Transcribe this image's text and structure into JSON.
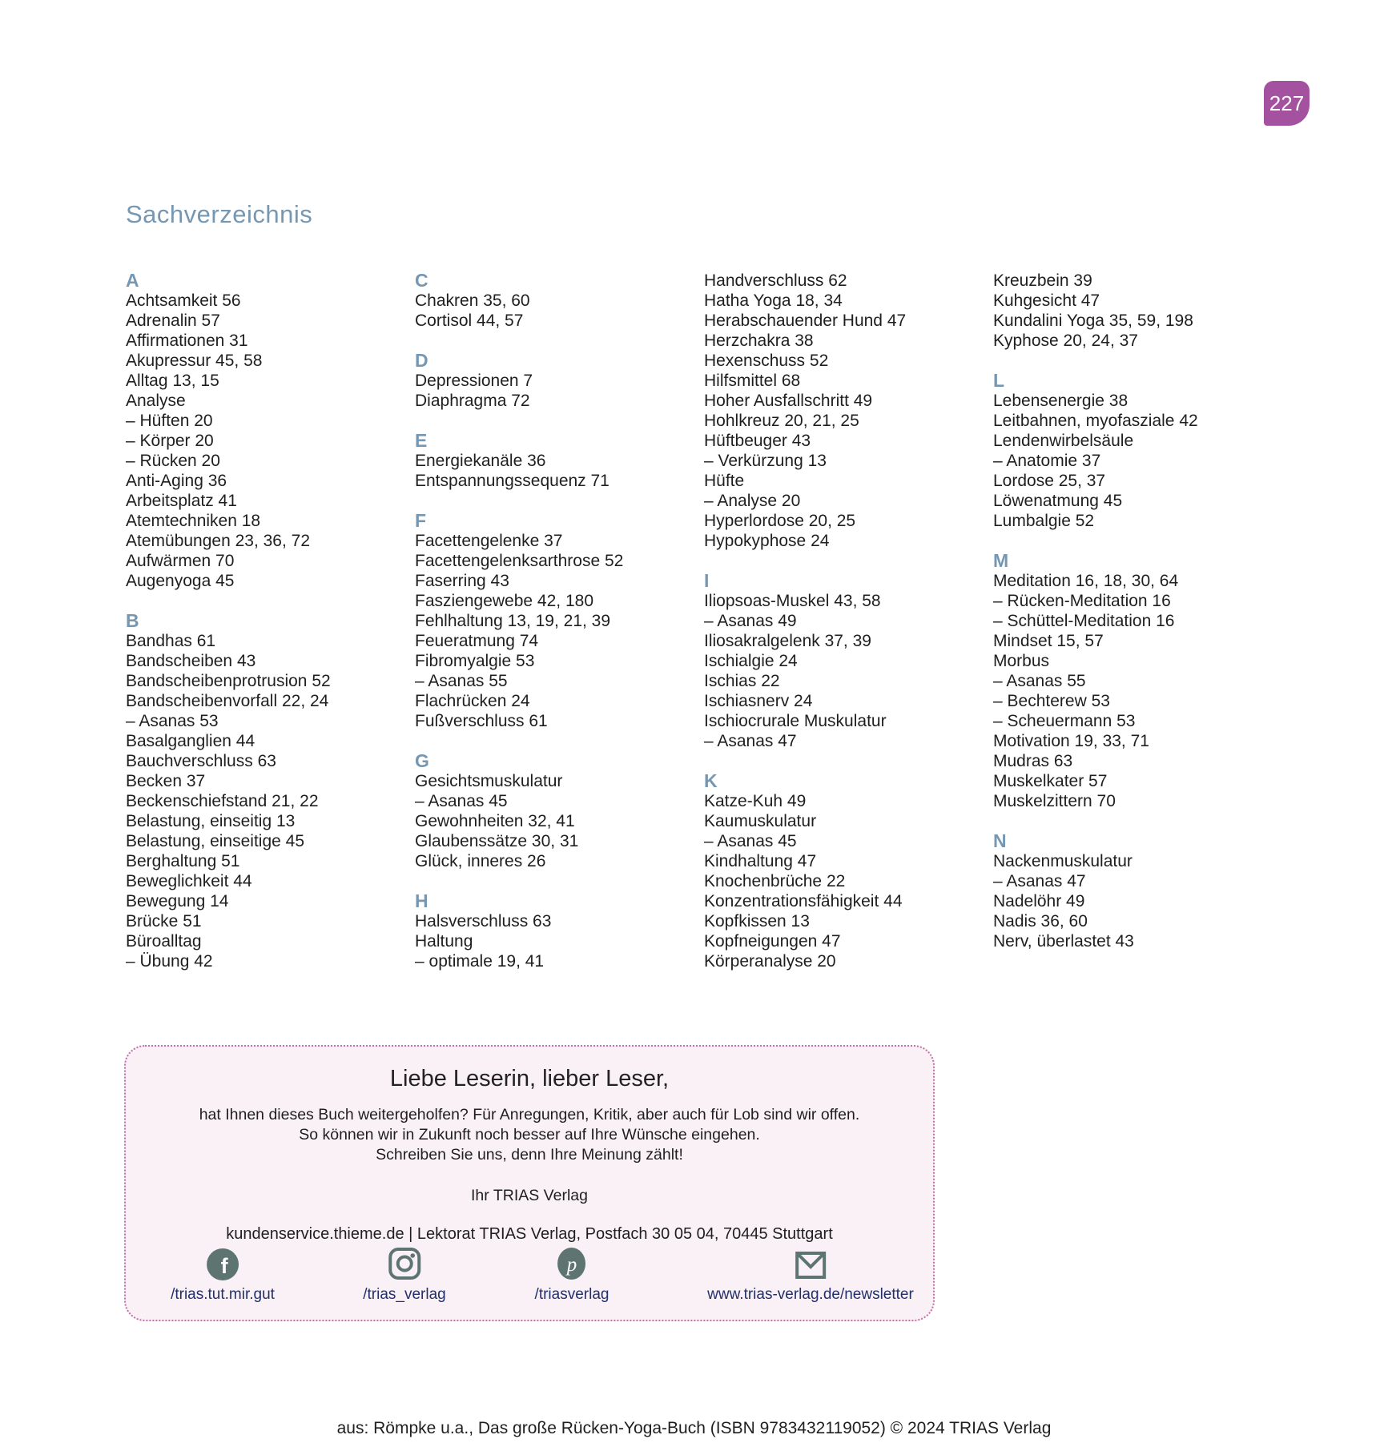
{
  "page": {
    "number": "227",
    "title": "Sachverzeichnis",
    "footer": "aus: Römpke u.a., Das große Rücken-Yoga-Buch (ISBN 9783432119052) © 2024 TRIAS Verlag"
  },
  "colors": {
    "accent_blue": "#7697b2",
    "badge_purple": "#a4519f",
    "text": "#1f1f1f",
    "box_background": "#faf1f7",
    "box_border": "#c46fa8",
    "icon_slate": "#5d7471",
    "link_navy": "#223069"
  },
  "index": {
    "columns": [
      {
        "groups": [
          {
            "letter": "A",
            "entries": [
              "Achtsamkeit 56",
              "Adrenalin 57",
              "Affirmationen 31",
              "Akupressur 45, 58",
              "Alltag 13, 15",
              "Analyse",
              "– Hüften 20",
              "– Körper 20",
              "– Rücken 20",
              "Anti-Aging 36",
              "Arbeitsplatz 41",
              "Atemtechniken 18",
              "Atemübungen 23, 36, 72",
              "Aufwärmen 70",
              "Augenyoga 45"
            ]
          },
          {
            "letter": "B",
            "entries": [
              "Bandhas 61",
              "Bandscheiben 43",
              "Bandscheibenprotrusion 52",
              "Bandscheibenvorfall 22, 24",
              "– Asanas 53",
              "Basalganglien 44",
              "Bauchverschluss 63",
              "Becken 37",
              "Beckenschiefstand 21, 22",
              "Belastung, einseitig 13",
              "Belastung, einseitige 45",
              "Berghaltung 51",
              "Beweglichkeit 44",
              "Bewegung 14",
              "Brücke 51",
              "Büroalltag",
              "– Übung 42"
            ]
          }
        ]
      },
      {
        "groups": [
          {
            "letter": "C",
            "entries": [
              "Chakren 35, 60",
              "Cortisol 44, 57"
            ]
          },
          {
            "letter": "D",
            "entries": [
              "Depressionen 7",
              "Diaphragma 72"
            ]
          },
          {
            "letter": "E",
            "entries": [
              "Energiekanäle 36",
              "Entspannungssequenz 71"
            ]
          },
          {
            "letter": "F",
            "entries": [
              "Facettengelenke 37",
              "Facettengelenksarthrose 52",
              "Faserring 43",
              "Fasziengewebe 42, 180",
              "Fehlhaltung 13, 19, 21, 39",
              "Feueratmung 74",
              "Fibromyalgie 53",
              "– Asanas 55",
              "Flachrücken 24",
              "Fußverschluss 61"
            ]
          },
          {
            "letter": "G",
            "entries": [
              "Gesichtsmuskulatur",
              "– Asanas 45",
              "Gewohnheiten 32, 41",
              "Glaubenssätze 30, 31",
              "Glück, inneres 26"
            ]
          },
          {
            "letter": "H",
            "entries": [
              "Halsverschluss 63",
              "Haltung",
              "– optimale 19, 41"
            ]
          }
        ]
      },
      {
        "groups": [
          {
            "letter": null,
            "entries": [
              "Handverschluss 62",
              "Hatha Yoga 18, 34",
              "Herabschauender Hund 47",
              "Herzchakra 38",
              "Hexenschuss 52",
              "Hilfsmittel 68",
              "Hoher Ausfallschritt 49",
              "Hohlkreuz 20, 21, 25",
              "Hüftbeuger 43",
              "– Verkürzung 13",
              "Hüfte",
              "– Analyse 20",
              "Hyperlordose 20, 25",
              "Hypokyphose 24"
            ]
          },
          {
            "letter": "I",
            "entries": [
              "Iliopsoas-Muskel 43, 58",
              "– Asanas 49",
              "Iliosakralgelenk 37, 39",
              "Ischialgie 24",
              "Ischias 22",
              "Ischiasnerv 24",
              "Ischiocrurale Muskulatur",
              "– Asanas 47"
            ]
          },
          {
            "letter": "K",
            "entries": [
              "Katze-Kuh 49",
              "Kaumuskulatur",
              "– Asanas 45",
              "Kindhaltung 47",
              "Knochenbrüche 22",
              "Konzentrationsfähigkeit 44",
              "Kopfkissen 13",
              "Kopfneigungen 47",
              "Körperanalyse 20"
            ]
          }
        ]
      },
      {
        "groups": [
          {
            "letter": null,
            "entries": [
              "Kreuzbein 39",
              "Kuhgesicht 47",
              "Kundalini Yoga 35, 59, 198",
              "Kyphose 20, 24, 37"
            ]
          },
          {
            "letter": "L",
            "entries": [
              "Lebensenergie 38",
              "Leitbahnen, myofasziale 42",
              "Lendenwirbelsäule",
              "– Anatomie 37",
              "Lordose 25, 37",
              "Löwenatmung 45",
              "Lumbalgie 52"
            ]
          },
          {
            "letter": "M",
            "entries": [
              "Meditation 16, 18, 30, 64",
              "– Rücken-Meditation 16",
              "– Schüttel-Meditation 16",
              "Mindset 15, 57",
              "Morbus",
              "– Asanas 55",
              "– Bechterew 53",
              "– Scheuermann 53",
              "Motivation 19, 33, 71",
              "Mudras 63",
              "Muskelkater 57",
              "Muskelzittern 70"
            ]
          },
          {
            "letter": "N",
            "entries": [
              "Nackenmuskulatur",
              "– Asanas 47",
              "Nadelöhr 49",
              "Nadis 36, 60",
              "Nerv, überlastet 43"
            ]
          }
        ]
      }
    ]
  },
  "feedback_box": {
    "title": "Liebe Leserin, lieber Leser,",
    "lines": [
      "hat Ihnen dieses Buch weitergeholfen? Für Anregungen, Kritik, aber auch für Lob sind wir offen.",
      "So können wir in Zukunft noch besser auf Ihre Wünsche eingehen.",
      "Schreiben Sie uns, denn Ihre Meinung zählt!"
    ],
    "signature": "Ihr TRIAS Verlag",
    "contact": "kundenservice.thieme.de | Lektorat TRIAS Verlag, Postfach 30 05 04, 70445 Stuttgart",
    "social": [
      {
        "icon": "facebook-icon",
        "label": "/trias.tut.mir.gut"
      },
      {
        "icon": "instagram-icon",
        "label": "/trias_verlag"
      },
      {
        "icon": "pinterest-icon",
        "label": "/triasverlag"
      },
      {
        "icon": "email-icon",
        "label": "www.trias-verlag.de/newsletter"
      }
    ]
  }
}
